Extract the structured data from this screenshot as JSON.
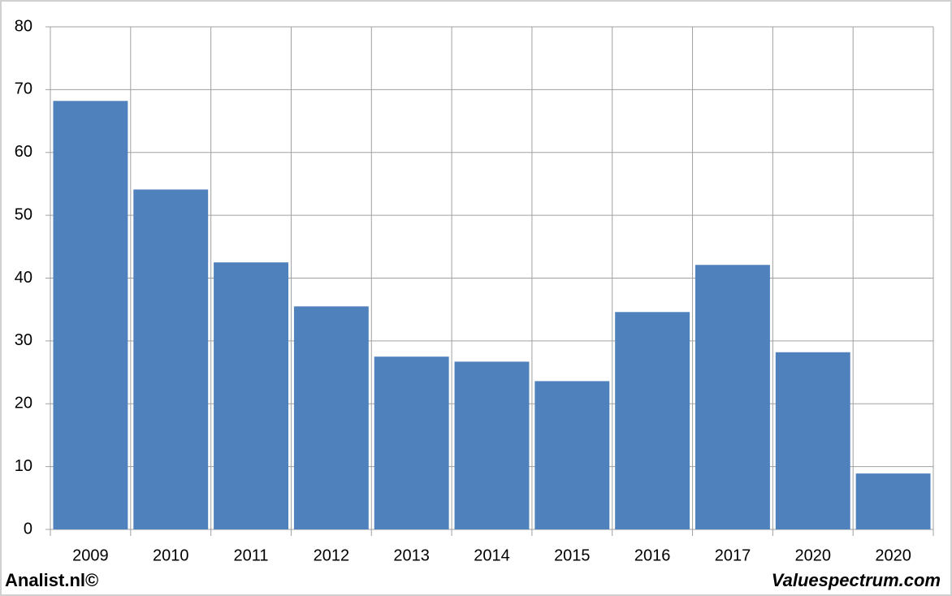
{
  "chart_data": {
    "type": "bar",
    "categories": [
      "2009",
      "2010",
      "2011",
      "2012",
      "2013",
      "2014",
      "2015",
      "2016",
      "2017",
      "2020",
      "2020"
    ],
    "values": [
      68.2,
      54.1,
      42.5,
      35.5,
      27.5,
      26.7,
      23.6,
      34.6,
      42.1,
      28.2,
      8.9
    ],
    "color": "#4f81bd",
    "ylim": [
      0,
      80
    ],
    "yticks": [
      0,
      10,
      20,
      30,
      40,
      50,
      60,
      70,
      80
    ],
    "grid": true,
    "footer_left": "Analist.nl©",
    "footer_right": "Valuespectrum.com"
  }
}
